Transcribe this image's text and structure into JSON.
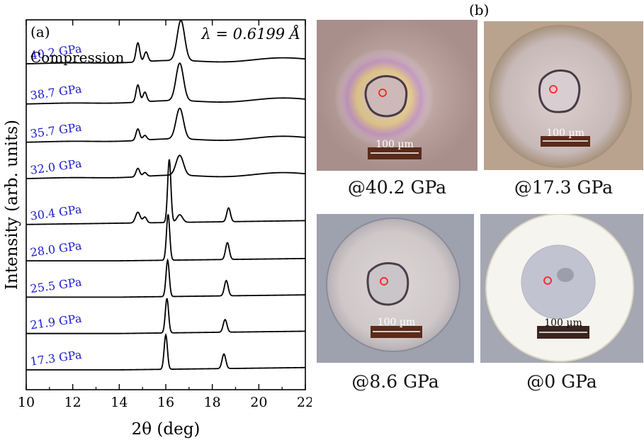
{
  "chart_data": {
    "type": "line",
    "panel_label": "(a)",
    "wavelength_label": "λ = 0.6199 Å",
    "compression_label": "Compression",
    "xlabel": "2θ (deg)",
    "ylabel": "Intensity (arb. units)",
    "xlim": [
      10,
      22
    ],
    "xticks": [
      10,
      12,
      14,
      16,
      18,
      20,
      22
    ],
    "ylim": [
      0,
      10
    ],
    "series_label_color": "#1a1acc",
    "series": [
      {
        "name": "17.3 GPa",
        "phase": "low",
        "offset": 0.0,
        "peaks": [
          [
            16.0,
            0.9,
            0.07
          ],
          [
            18.5,
            0.38,
            0.08
          ]
        ]
      },
      {
        "name": "21.9 GPa",
        "phase": "low",
        "offset": 0.95,
        "peaks": [
          [
            16.05,
            0.9,
            0.07
          ],
          [
            18.55,
            0.33,
            0.08
          ]
        ]
      },
      {
        "name": "25.5 GPa",
        "phase": "low",
        "offset": 1.9,
        "peaks": [
          [
            16.08,
            0.95,
            0.07
          ],
          [
            18.6,
            0.4,
            0.08
          ]
        ]
      },
      {
        "name": "28.0 GPa",
        "phase": "low",
        "offset": 2.85,
        "peaks": [
          [
            16.1,
            1.2,
            0.07
          ],
          [
            18.65,
            0.44,
            0.08
          ]
        ]
      },
      {
        "name": "30.4 GPa",
        "phase": "mixed",
        "offset": 3.8,
        "peaks": [
          [
            16.15,
            1.65,
            0.07
          ],
          [
            18.7,
            0.36,
            0.08
          ],
          [
            14.8,
            0.28,
            0.1
          ],
          [
            15.1,
            0.15,
            0.08
          ],
          [
            16.6,
            0.2,
            0.12
          ]
        ]
      },
      {
        "name": "32.0 GPa",
        "phase": "high",
        "offset": 5.0,
        "peaks": [
          [
            14.8,
            0.22,
            0.08
          ],
          [
            15.1,
            0.1,
            0.08
          ],
          [
            16.6,
            0.52,
            0.16
          ]
        ]
      },
      {
        "name": "35.7 GPa",
        "phase": "high",
        "offset": 5.95,
        "peaks": [
          [
            14.8,
            0.3,
            0.08
          ],
          [
            15.1,
            0.12,
            0.08
          ],
          [
            16.6,
            0.8,
            0.16
          ]
        ]
      },
      {
        "name": "38.7 GPa",
        "phase": "high",
        "offset": 6.95,
        "peaks": [
          [
            14.8,
            0.45,
            0.08
          ],
          [
            15.1,
            0.25,
            0.08
          ],
          [
            16.6,
            0.98,
            0.16
          ]
        ]
      },
      {
        "name": "40.2 GPa",
        "phase": "high",
        "offset": 8.0,
        "peaks": [
          [
            14.8,
            0.5,
            0.08
          ],
          [
            15.15,
            0.25,
            0.08
          ],
          [
            16.65,
            1.05,
            0.16
          ]
        ]
      }
    ]
  },
  "panel_b": {
    "label": "(b)",
    "photos": [
      {
        "caption": "@40.2 GPa",
        "scalebar": "100 µm",
        "tint": "#b29a96"
      },
      {
        "caption": "@17.3 GPa",
        "scalebar": "100 µm",
        "tint": "#bda89d"
      },
      {
        "caption": "@8.6 GPa",
        "scalebar": "100 µm",
        "tint": "#b9b7bf"
      },
      {
        "caption": "@0 GPa",
        "scalebar": "100 µm",
        "tint": "#c9c8d2"
      }
    ]
  }
}
